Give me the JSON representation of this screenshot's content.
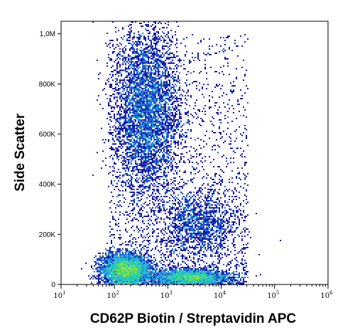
{
  "chart_data": {
    "type": "scatter",
    "subtype": "flow-cytometry-density-dot-plot",
    "xlabel": "CD62P Biotin / Streptavidin APC",
    "ylabel": "Side Scatter",
    "x_scale": "log",
    "xlim": [
      10,
      1000000
    ],
    "y_scale": "linear",
    "ylim": [
      0,
      1050000
    ],
    "x_ticks": [
      {
        "value": 10,
        "base": "10",
        "exp": "1"
      },
      {
        "value": 100,
        "base": "10",
        "exp": "2"
      },
      {
        "value": 1000,
        "base": "10",
        "exp": "3"
      },
      {
        "value": 10000,
        "base": "10",
        "exp": "4"
      },
      {
        "value": 100000,
        "base": "10",
        "exp": "5"
      },
      {
        "value": 1000000,
        "base": "10",
        "exp": "6"
      }
    ],
    "y_ticks": [
      {
        "value": 0,
        "label": "0"
      },
      {
        "value": 200000,
        "label": "200K"
      },
      {
        "value": 400000,
        "label": "400K"
      },
      {
        "value": 600000,
        "label": "600K"
      },
      {
        "value": 800000,
        "label": "800K"
      },
      {
        "value": 1000000,
        "label": "1,0M"
      }
    ],
    "grid": false,
    "legend": "none",
    "colormap": [
      "#1a1aa8",
      "#1f6fd6",
      "#25b4e0",
      "#2fd49a",
      "#8fe03a",
      "#f0e62a",
      "#f28a1e",
      "#d9261a"
    ],
    "populations": [
      {
        "x_center": 160,
        "y_center": 60000,
        "x_spread_decades": 0.22,
        "y_spread": 30000,
        "density": "peak"
      },
      {
        "x_center": 2500,
        "y_center": 30000,
        "x_spread_decades": 0.35,
        "y_spread": 15000,
        "density": "high"
      },
      {
        "x_center": 400,
        "y_center": 690000,
        "x_spread_decades": 0.3,
        "y_spread": 170000,
        "density": "medium"
      },
      {
        "x_center": 4000,
        "y_center": 240000,
        "x_spread_decades": 0.35,
        "y_spread": 70000,
        "density": "low"
      }
    ]
  }
}
